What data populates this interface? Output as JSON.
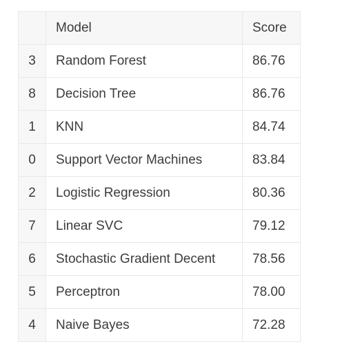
{
  "table": {
    "columns": [
      "",
      "Model",
      "Score"
    ],
    "rows": [
      {
        "index": "3",
        "model": "Random Forest",
        "score": "86.76"
      },
      {
        "index": "8",
        "model": "Decision Tree",
        "score": "86.76"
      },
      {
        "index": "1",
        "model": "KNN",
        "score": "84.74"
      },
      {
        "index": "0",
        "model": "Support Vector Machines",
        "score": "83.84"
      },
      {
        "index": "2",
        "model": "Logistic Regression",
        "score": "80.36"
      },
      {
        "index": "7",
        "model": "Linear SVC",
        "score": "79.12"
      },
      {
        "index": "6",
        "model": "Stochastic Gradient Decent",
        "score": "78.56"
      },
      {
        "index": "5",
        "model": "Perceptron",
        "score": "78.00"
      },
      {
        "index": "4",
        "model": "Naive Bayes",
        "score": "72.28"
      }
    ]
  },
  "colors": {
    "header_bg": "#f7f7f7",
    "border": "#e8e8e8",
    "text": "#3c3c3c"
  }
}
